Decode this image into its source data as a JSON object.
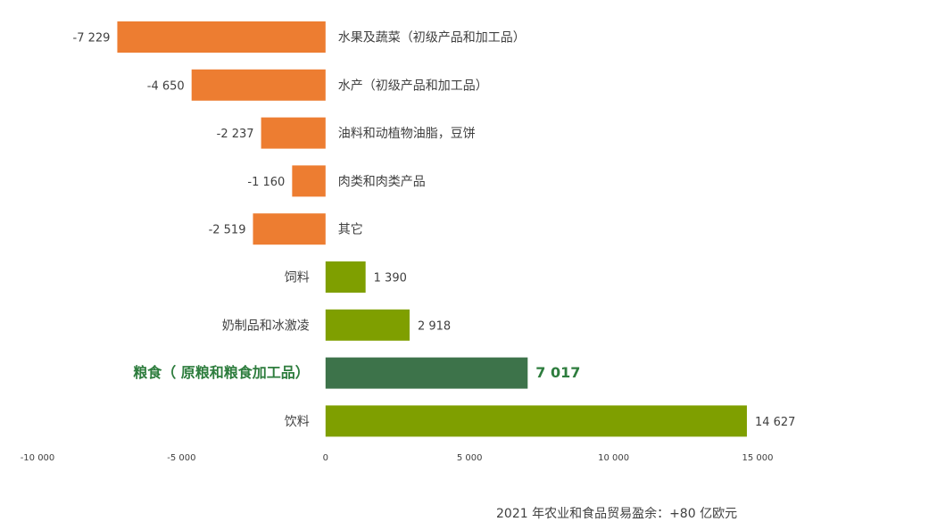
{
  "chart_data": {
    "type": "bar",
    "orientation": "horizontal",
    "categories": [
      "水果及蔬菜（初级产品和加工品）",
      "水产（初级产品和加工品）",
      "油料和动植物油脂，豆饼",
      "肉类和肉类产品",
      "其它",
      "饲料",
      "奶制品和冰激凌",
      "粮食（ 原粮和粮食加工品）",
      "饮料"
    ],
    "values": [
      -7229,
      -4650,
      -2237,
      -1160,
      -2519,
      1390,
      2918,
      7017,
      14627
    ],
    "value_labels": [
      "-7 229",
      "-4 650",
      "-2 237",
      "-1 160",
      "-2 519",
      "1 390",
      "2 918",
      "7 017",
      "14 627"
    ],
    "highlight_index": 7,
    "colors": {
      "negative": "#ED7D31",
      "positive": "#7F9F00",
      "highlight": "#3D734A",
      "highlight_text": "#2E7D3E",
      "text": "#404040"
    },
    "xlim": [
      -10000,
      15000
    ],
    "xticks": [
      -10000,
      -5000,
      0,
      5000,
      10000,
      15000
    ],
    "xtick_labels": [
      "-10 000",
      "-5 000",
      "0",
      "5 000",
      "10 000",
      "15 000"
    ],
    "grid": false,
    "legend": "none"
  },
  "footer": {
    "note": "2021 年农业和食品贸易盈余：+80 亿欧元"
  }
}
